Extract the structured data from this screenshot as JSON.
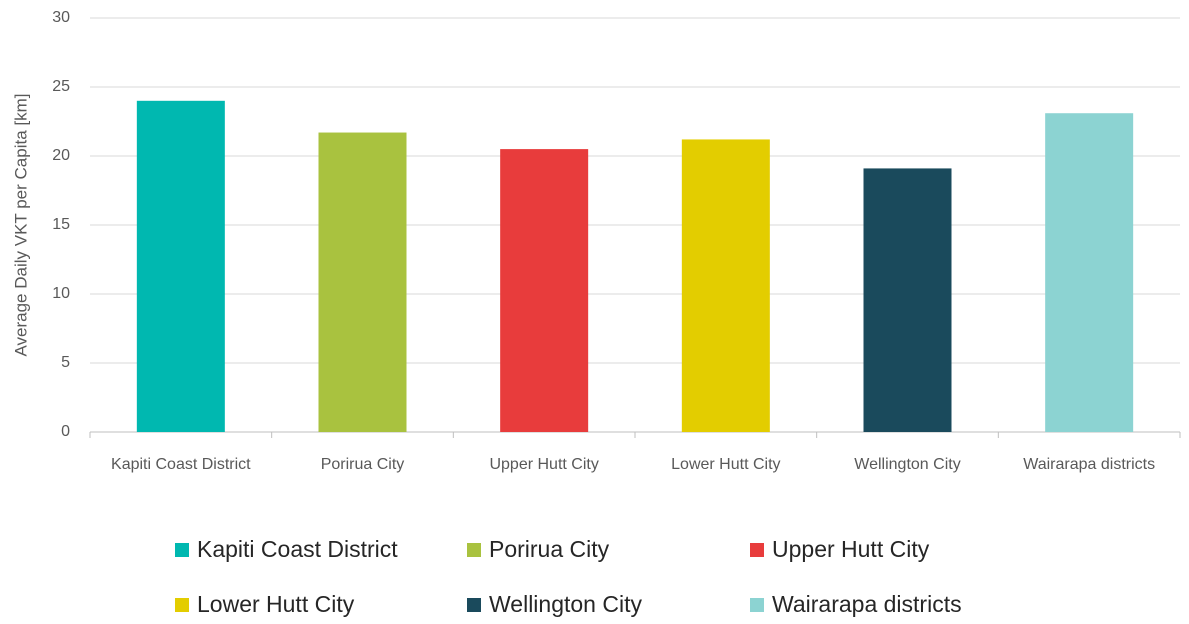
{
  "chart_data": {
    "type": "bar",
    "y_axis_label": "Average Daily VKT per Capita [km]",
    "categories": [
      "Kapiti Coast District",
      "Porirua City",
      "Upper Hutt City",
      "Lower Hutt City",
      "Wellington City",
      "Wairarapa districts"
    ],
    "values": [
      24.0,
      21.7,
      20.5,
      21.2,
      19.1,
      23.1
    ],
    "colors": [
      "#00b8b0",
      "#a9c23f",
      "#e83c3c",
      "#e3cd00",
      "#1a4a5c",
      "#8cd3d2"
    ],
    "ylim": [
      0,
      30
    ],
    "yticks": [
      0,
      5,
      10,
      15,
      20,
      25,
      30
    ],
    "grid": true,
    "legend": "bottom"
  }
}
